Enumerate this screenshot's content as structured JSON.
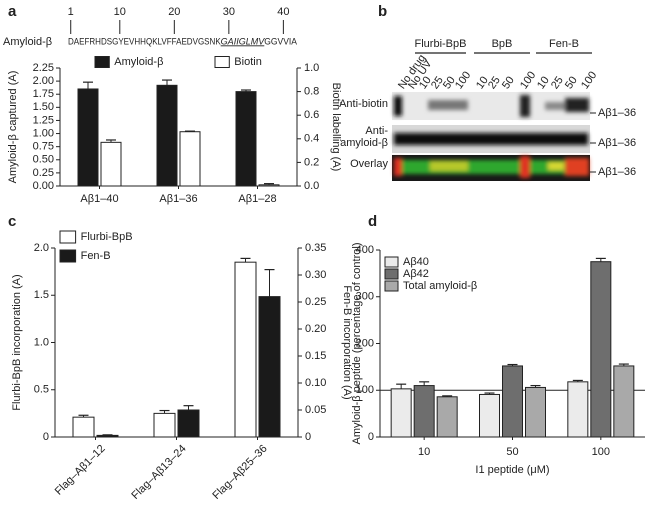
{
  "panel_labels": [
    "a",
    "b",
    "c",
    "d"
  ],
  "sequence": {
    "label": "Amyloid-β",
    "parts": [
      "DAEFRHDSGYEVHHQKLVFFAEDVGSNK",
      "GAIIGLMV",
      "GGVVIA"
    ],
    "ruler": [
      1,
      10,
      20,
      30,
      40
    ]
  },
  "blot": {
    "groups": [
      "Flurbi-BpB",
      "BpB",
      "Fen-B"
    ],
    "lanes": [
      "No drug",
      "No UV",
      "10",
      "25",
      "50",
      "100",
      "10",
      "25",
      "50",
      "100",
      "10",
      "25",
      "50",
      "100"
    ],
    "rows": [
      [
        "Anti-biotin"
      ],
      [
        "Anti-",
        "amyloid-β"
      ],
      [
        "Overlay"
      ]
    ],
    "band_labels": [
      "Aβ1–36",
      "Aβ1–36",
      "Aβ1–36"
    ]
  },
  "chart_data": [
    {
      "type": "bar",
      "ylabel": "Amyloid-β captured (A)",
      "y2label": "Biotin labelling (A)",
      "categories": [
        "Aβ1–40",
        "Aβ1–36",
        "Aβ1–28"
      ],
      "series": [
        {
          "name": "Amyloid-β",
          "color": "#1a1a1a",
          "values": [
            1.85,
            1.92,
            1.8
          ],
          "errors": [
            0.13,
            0.1,
            0.03
          ]
        },
        {
          "name": "Biotin",
          "color": "#ffffff",
          "axis": "y2",
          "values": [
            0.37,
            0.46,
            0.01
          ],
          "errors": [
            0.02,
            0.005,
            0.01
          ]
        }
      ],
      "ylim": [
        0,
        2.25
      ],
      "yticks": [
        {
          "value": 0,
          "label": "0.00"
        },
        0.25,
        {
          "value": 0.5,
          "label": "0.50"
        },
        0.75,
        {
          "value": 1,
          "label": "1.00"
        },
        1.25,
        {
          "value": 1.5,
          "label": "1.50"
        },
        1.75,
        {
          "value": 2,
          "label": "2.00"
        },
        2.25
      ],
      "y2lim": [
        0,
        1
      ],
      "y2ticks": [
        {
          "value": 0,
          "label": "0.0"
        },
        0.2,
        0.4,
        0.6,
        0.8,
        {
          "value": 1,
          "label": "1.0"
        }
      ]
    },
    {
      "type": "bar",
      "ylabel": "Flurbi-BpB incorporation (A)",
      "y2label": "Fen-B incorporation (A)",
      "categories": [
        "Flag–Aβ1–12",
        "Flag–Aβ13–24",
        "Flag–Aβ25–36"
      ],
      "series": [
        {
          "name": "Flurbi-BpB",
          "color": "#ffffff",
          "values": [
            0.21,
            0.25,
            1.85
          ],
          "errors": [
            0.02,
            0.03,
            0.04
          ]
        },
        {
          "name": "Fen-B",
          "color": "#1a1a1a",
          "axis": "y2",
          "values": [
            0.003,
            0.05,
            0.26
          ],
          "errors": [
            0.001,
            0.008,
            0.05
          ]
        }
      ],
      "ylim": [
        0,
        2
      ],
      "yticks": [
        0,
        0.5,
        {
          "value": 1,
          "label": "1.0"
        },
        1.5,
        {
          "value": 2,
          "label": "2.0"
        }
      ],
      "y2lim": [
        0,
        0.35
      ],
      "y2ticks": [
        0,
        0.05,
        {
          "value": 0.1,
          "label": "0.10"
        },
        0.15,
        {
          "value": 0.2,
          "label": "0.20"
        },
        0.25,
        {
          "value": 0.3,
          "label": "0.30"
        },
        0.35
      ]
    },
    {
      "type": "bar",
      "ylabel": "Amyloid-β peptide (percentage of control)",
      "xlabel": "I1 peptide (μM)",
      "categories": [
        "10",
        "50",
        "100"
      ],
      "series": [
        {
          "name": "Aβ40",
          "color": "#ebebeb",
          "values": [
            103,
            91,
            118
          ],
          "errors": [
            10,
            3,
            3
          ]
        },
        {
          "name": "Aβ42",
          "color": "#6e6e6e",
          "values": [
            110,
            152,
            375
          ],
          "errors": [
            8,
            3,
            7
          ]
        },
        {
          "name": "Total amyloid-β",
          "color": "#a9a9a9",
          "values": [
            86,
            106,
            152
          ],
          "errors": [
            2,
            4,
            4
          ]
        }
      ],
      "ylim": [
        0,
        400
      ],
      "yticks": [
        0,
        100,
        200,
        300,
        400
      ],
      "hline": 100
    }
  ]
}
